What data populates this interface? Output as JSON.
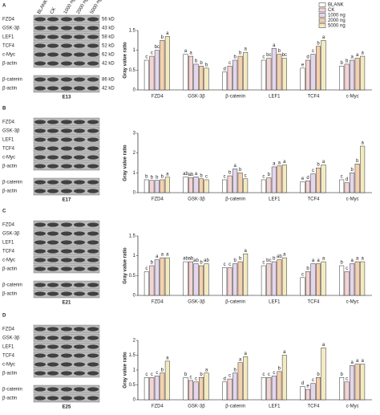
{
  "blots": [
    {
      "label": "A",
      "stage": "E13",
      "lanes": [
        "BLANK",
        "CK",
        "1000 ng",
        "2000 ng",
        "5000 ng"
      ],
      "rows": [
        "FZD4",
        "GSK-3β",
        "LEF1",
        "TCF4",
        "c-Myc",
        "β-actin",
        "β-catenin",
        "β-actin"
      ],
      "kd": [
        "56 kD",
        "43 kD",
        "58 kD",
        "52 kD",
        "62 kD",
        "42 kD",
        "86 kD",
        "42 kD"
      ]
    },
    {
      "label": "B",
      "stage": "E17",
      "rows": [
        "FZD4",
        "GSK-3β",
        "LEF1",
        "TCF4",
        "c-Myc",
        "β-actin",
        "β-catenin",
        "β-actin"
      ]
    },
    {
      "label": "C",
      "stage": "E21",
      "rows": [
        "FZD4",
        "GSK-3β",
        "LEF1",
        "TCF4",
        "c-Myc",
        "β-actin",
        "β-catenin",
        "β-actin"
      ]
    },
    {
      "label": "D",
      "stage": "E25",
      "rows": [
        "FZD4",
        "GSK-3β",
        "LEF1",
        "TCF4",
        "c-Myc",
        "β-actin",
        "β-catenin",
        "β-actin"
      ]
    }
  ],
  "chart_data": [
    {
      "type": "bar",
      "y_label": "Gray value ratio",
      "categories": [
        "FZD4",
        "GSK-3β",
        "β-catenin",
        "LEF1",
        "TCF4",
        "c-Myc"
      ],
      "ylim": [
        0,
        1.5
      ],
      "yticks": [
        0,
        0.5,
        1,
        1.5
      ],
      "series": [
        {
          "name": "BLANK",
          "color": "#ffffff",
          "values": [
            0.75,
            0.9,
            0.45,
            0.75,
            0.55,
            0.6
          ],
          "letters": [
            "c",
            "a",
            "d",
            "c",
            "e",
            "b"
          ]
        },
        {
          "name": "CK",
          "color": "#f4d3d3",
          "values": [
            0.85,
            0.85,
            0.6,
            0.8,
            0.75,
            0.65
          ],
          "letters": [
            "c",
            "a",
            "c",
            "bc",
            "d",
            "b"
          ]
        },
        {
          "name": "1000 ng",
          "color": "#e4d6ec",
          "values": [
            1.0,
            0.65,
            0.75,
            1.05,
            0.9,
            0.75
          ],
          "letters": [
            "bc",
            "b",
            "b",
            "a",
            "c",
            "a"
          ]
        },
        {
          "name": "2000 ng",
          "color": "#f5d0ae",
          "values": [
            1.25,
            0.6,
            0.85,
            0.9,
            1.1,
            0.8
          ],
          "letters": [
            "b",
            "b",
            "b",
            "b",
            "b",
            "a"
          ]
        },
        {
          "name": "5000 ng",
          "color": "#f4eabf",
          "values": [
            1.35,
            0.55,
            0.95,
            0.8,
            1.25,
            0.85
          ],
          "letters": [
            "a",
            "b",
            "a",
            "bc",
            "a",
            "a"
          ]
        }
      ]
    },
    {
      "type": "bar",
      "y_label": "Gray value ratio",
      "categories": [
        "FZD4",
        "GSK-3β",
        "β-catenin",
        "LEF1",
        "TCF4",
        "c-Myc"
      ],
      "ylim": [
        0,
        3
      ],
      "yticks": [
        0,
        1,
        2,
        3
      ],
      "series": [
        {
          "color": "#ffffff",
          "values": [
            0.65,
            0.8,
            0.65,
            0.65,
            0.55,
            0.65
          ],
          "letters": [
            "b",
            "ab",
            "c",
            "c",
            "e",
            "c"
          ]
        },
        {
          "color": "#f4d3d3",
          "values": [
            0.62,
            0.75,
            0.85,
            0.75,
            0.6,
            0.5
          ],
          "letters": [
            "b",
            "ab",
            "b",
            "b",
            "d",
            "d"
          ]
        },
        {
          "color": "#e4d6ec",
          "values": [
            0.62,
            0.8,
            1.2,
            1.3,
            0.95,
            1.0
          ],
          "letters": [
            "b",
            "a",
            "a",
            "a",
            "c",
            "b"
          ]
        },
        {
          "color": "#f5d0ae",
          "values": [
            0.65,
            0.7,
            1.0,
            1.35,
            1.25,
            1.45
          ],
          "letters": [
            "b",
            "b",
            "b",
            "a",
            "b",
            "b"
          ]
        },
        {
          "color": "#f4eabf",
          "values": [
            0.78,
            0.65,
            0.7,
            1.4,
            1.4,
            2.35
          ],
          "letters": [
            "a",
            "c",
            "c",
            "a",
            "a",
            "a"
          ]
        }
      ]
    },
    {
      "type": "bar",
      "y_label": "Gray value ratio",
      "categories": [
        "FZD4",
        "GSK-3β",
        "β-catenin",
        "LEF1",
        "TCF4",
        "c-Myc"
      ],
      "ylim": [
        0,
        1.5
      ],
      "yticks": [
        0,
        0.5,
        1,
        1.5
      ],
      "series": [
        {
          "color": "#ffffff",
          "values": [
            0.6,
            0.85,
            0.7,
            0.75,
            0.45,
            0.75
          ],
          "letters": [
            "c",
            "ab",
            "c",
            "c",
            "c",
            "b"
          ]
        },
        {
          "color": "#f4d3d3",
          "values": [
            0.75,
            0.85,
            0.7,
            0.8,
            0.6,
            0.6
          ],
          "letters": [
            "b",
            "ab",
            "c",
            "bc",
            "b",
            "c"
          ]
        },
        {
          "color": "#e4d6ec",
          "values": [
            0.9,
            0.8,
            0.8,
            0.85,
            0.8,
            0.8
          ],
          "letters": [
            "a",
            "ab",
            "b",
            "b",
            "a",
            "a"
          ]
        },
        {
          "color": "#f5d0ae",
          "values": [
            0.95,
            0.75,
            0.85,
            0.9,
            0.8,
            0.85
          ],
          "letters": [
            "a",
            "b",
            "b",
            "ab",
            "a",
            "a"
          ]
        },
        {
          "color": "#f4eabf",
          "values": [
            0.95,
            0.8,
            1.05,
            0.95,
            0.85,
            0.85
          ],
          "letters": [
            "a",
            "ab",
            "a",
            "a",
            "a",
            "a"
          ]
        }
      ]
    },
    {
      "type": "bar",
      "y_label": "Gray value ratio",
      "categories": [
        "FZD4",
        "GSK-3β",
        "β-catenin",
        "LEF1",
        "TCF4",
        "c-Myc"
      ],
      "ylim": [
        0,
        2
      ],
      "yticks": [
        0,
        0.5,
        1,
        1.5,
        2
      ],
      "series": [
        {
          "color": "#ffffff",
          "values": [
            0.75,
            0.75,
            0.6,
            0.75,
            0.45,
            0.75
          ],
          "letters": [
            "c",
            "b",
            "d",
            "c",
            "d",
            "b"
          ]
        },
        {
          "color": "#f4d3d3",
          "values": [
            0.75,
            0.65,
            0.7,
            0.75,
            0.35,
            0.6
          ],
          "letters": [
            "c",
            "c",
            "c",
            "c",
            "e",
            "c"
          ]
        },
        {
          "color": "#e4d6ec",
          "values": [
            0.8,
            0.6,
            0.9,
            0.8,
            0.55,
            1.15
          ],
          "letters": [
            "c",
            "c",
            "b",
            "c",
            "c",
            "a"
          ]
        },
        {
          "color": "#f5d0ae",
          "values": [
            0.9,
            0.75,
            1.25,
            0.95,
            0.75,
            1.2
          ],
          "letters": [
            "b",
            "b",
            "a",
            "b",
            "b",
            "a"
          ]
        },
        {
          "color": "#f4eabf",
          "values": [
            1.3,
            0.9,
            1.45,
            1.5,
            1.75,
            1.2
          ],
          "letters": [
            "a",
            "a",
            "a",
            "a",
            "a",
            "a"
          ]
        }
      ]
    }
  ]
}
